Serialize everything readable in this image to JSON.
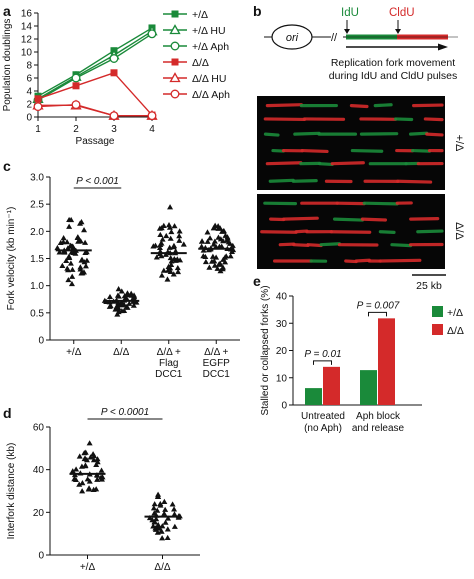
{
  "panel_labels": {
    "a": "a",
    "b": "b",
    "c": "c",
    "d": "d",
    "e": "e"
  },
  "colors": {
    "green": "#1a8a3a",
    "red": "#d42a2a",
    "black": "#111111"
  },
  "panel_b": {
    "ori": "ori",
    "idu": "IdU",
    "cldu": "CldU",
    "caption_line1": "Replication fork movement",
    "caption_line2": "during IdU and CldU pulses",
    "row1_label": "+/Δ",
    "row2_label": "Δ/Δ",
    "scale_bar": "25 kb"
  },
  "chart_data": [
    {
      "id": "a",
      "type": "line",
      "xlabel": "Passage",
      "ylabel": "Population doublings",
      "x": [
        1,
        2,
        3,
        4
      ],
      "xlim": [
        1,
        4
      ],
      "ylim": [
        0,
        16
      ],
      "xticks": [
        "1",
        "2",
        "3",
        "4"
      ],
      "yticks": [
        "0",
        "2",
        "4",
        "6",
        "8",
        "10",
        "12",
        "14",
        "16"
      ],
      "series": [
        {
          "name": "+/Δ",
          "color": "#1a8a3a",
          "marker": "square-filled",
          "values": [
            3.2,
            6.5,
            10.2,
            13.7
          ]
        },
        {
          "name": "+/Δ HU",
          "color": "#1a8a3a",
          "marker": "triangle-open",
          "values": [
            2.8,
            6.2,
            9.5,
            13.2
          ]
        },
        {
          "name": "+/Δ Aph",
          "color": "#1a8a3a",
          "marker": "circle-open",
          "values": [
            2.6,
            6.0,
            9.0,
            12.8
          ]
        },
        {
          "name": "Δ/Δ",
          "color": "#d42a2a",
          "marker": "square-filled",
          "values": [
            2.8,
            4.8,
            6.8,
            0.3
          ]
        },
        {
          "name": "Δ/Δ HU",
          "color": "#d42a2a",
          "marker": "triangle-open",
          "values": [
            1.8,
            1.8,
            0.2,
            0.2
          ]
        },
        {
          "name": "Δ/Δ Aph",
          "color": "#d42a2a",
          "marker": "circle-open",
          "values": [
            1.6,
            1.9,
            0.2,
            0.2
          ]
        }
      ]
    },
    {
      "id": "c",
      "type": "scatter",
      "ylabel": "Fork velocity (kb min⁻¹)",
      "ylim": [
        0,
        3
      ],
      "yticks": [
        "0",
        "0.5",
        "1.0",
        "1.5",
        "2.0",
        "2.5",
        "3.0"
      ],
      "categories": [
        "+/Δ",
        "Δ/Δ",
        "Δ/Δ + Flag DCC1",
        "Δ/Δ + EGFP DCC1"
      ],
      "category_lines": [
        [
          "+/Δ"
        ],
        [
          "Δ/Δ"
        ],
        [
          "Δ/Δ +",
          "Flag",
          "DCC1"
        ],
        [
          "Δ/Δ +",
          "EGFP",
          "DCC1"
        ]
      ],
      "medians": [
        1.65,
        0.72,
        1.6,
        1.68
      ],
      "spreads": [
        [
          0.95,
          2.45
        ],
        [
          0.42,
          1.0
        ],
        [
          0.95,
          2.5
        ],
        [
          1.15,
          2.3
        ]
      ],
      "counts": [
        55,
        45,
        50,
        60
      ],
      "annotation": "P < 0.001",
      "annotation_between": [
        0,
        1
      ]
    },
    {
      "id": "d",
      "type": "scatter",
      "ylabel": "Interfork distance (kb)",
      "ylim": [
        0,
        60
      ],
      "yticks": [
        "0",
        "20",
        "40",
        "60"
      ],
      "categories": [
        "+/Δ",
        "Δ/Δ"
      ],
      "medians": [
        38,
        18
      ],
      "spreads": [
        [
          27,
          53
        ],
        [
          6,
          31
        ]
      ],
      "counts": [
        40,
        40
      ],
      "annotation": "P < 0.0001",
      "annotation_between": [
        0,
        1
      ]
    },
    {
      "id": "e",
      "type": "bar",
      "ylabel": "Stalled or collapsed forks (%)",
      "ylim": [
        0,
        40
      ],
      "yticks": [
        "0",
        "10",
        "20",
        "30",
        "40"
      ],
      "categories": [
        "Untreated (no Aph)",
        "Aph block and release"
      ],
      "category_lines": [
        [
          "Untreated",
          "(no Aph)"
        ],
        [
          "Aph block",
          "and release"
        ]
      ],
      "series": [
        {
          "name": "+/Δ",
          "color": "#1a8a3a",
          "values": [
            6.2,
            12.8
          ]
        },
        {
          "name": "Δ/Δ",
          "color": "#d42a2a",
          "values": [
            14.0,
            31.8
          ]
        }
      ],
      "annotations": [
        "P = 0.01",
        "P = 0.007"
      ],
      "legend_position": "right"
    }
  ]
}
